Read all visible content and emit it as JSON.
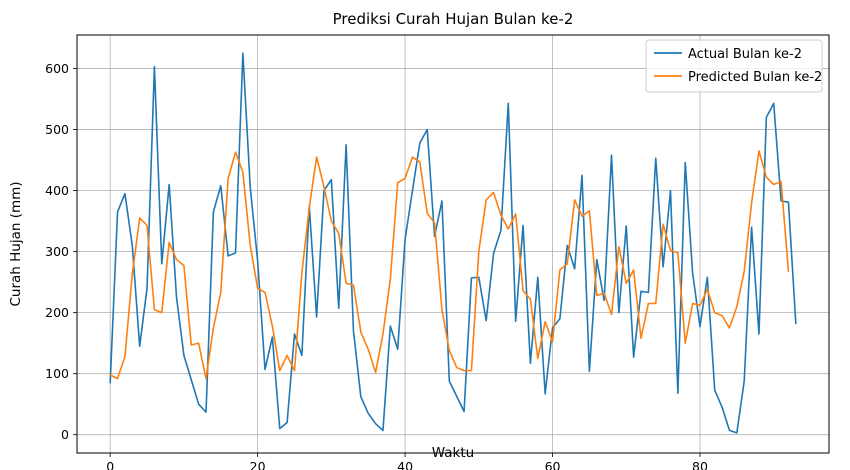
{
  "chart_data": {
    "type": "line",
    "title": "Prediksi Curah Hujan Bulan ke-2",
    "xlabel": "Waktu",
    "ylabel": "Curah Hujan (mm)",
    "xlim": [
      -4.5,
      97.5
    ],
    "ylim": [
      -30,
      655
    ],
    "xticks": [
      0,
      20,
      40,
      60,
      80
    ],
    "yticks": [
      0,
      100,
      200,
      300,
      400,
      500,
      600
    ],
    "grid": true,
    "legend_position": "top-right",
    "series": [
      {
        "name": "Actual Bulan ke-2",
        "color": "#1f77b4",
        "values": [
          85,
          365,
          395,
          310,
          145,
          240,
          603,
          280,
          410,
          225,
          130,
          90,
          50,
          37,
          365,
          408,
          293,
          298,
          625,
          405,
          285,
          107,
          160,
          10,
          20,
          165,
          130,
          375,
          193,
          400,
          418,
          207,
          475,
          170,
          62,
          35,
          18,
          7,
          178,
          140,
          320,
          400,
          478,
          500,
          325,
          383,
          88,
          63,
          38,
          257,
          258,
          187,
          297,
          335,
          543,
          186,
          343,
          117,
          258,
          67,
          175,
          190,
          310,
          272,
          425,
          104,
          287,
          220,
          458,
          200,
          342,
          127,
          235,
          233,
          453,
          275,
          400,
          68,
          446,
          265,
          177,
          258,
          73,
          45,
          7,
          3,
          88,
          340,
          165,
          520,
          543,
          383,
          381,
          182
        ]
      },
      {
        "name": "Predicted Bulan ke-2",
        "color": "#ff7f0e",
        "values": [
          98,
          92,
          128,
          263,
          355,
          343,
          205,
          200,
          315,
          287,
          277,
          147,
          150,
          92,
          175,
          233,
          420,
          463,
          430,
          310,
          240,
          233,
          178,
          105,
          130,
          105,
          265,
          372,
          455,
          406,
          350,
          330,
          248,
          245,
          168,
          140,
          102,
          165,
          255,
          413,
          420,
          455,
          447,
          363,
          347,
          205,
          138,
          110,
          105,
          105,
          300,
          385,
          397,
          360,
          337,
          362,
          236,
          222,
          125,
          185,
          152,
          270,
          280,
          385,
          358,
          367,
          228,
          232,
          197,
          308,
          248,
          270,
          158,
          215,
          215,
          345,
          302,
          298,
          150,
          215,
          212,
          238,
          200,
          195,
          175,
          210,
          268,
          380,
          465,
          422,
          410,
          415,
          268
        ]
      }
    ]
  }
}
